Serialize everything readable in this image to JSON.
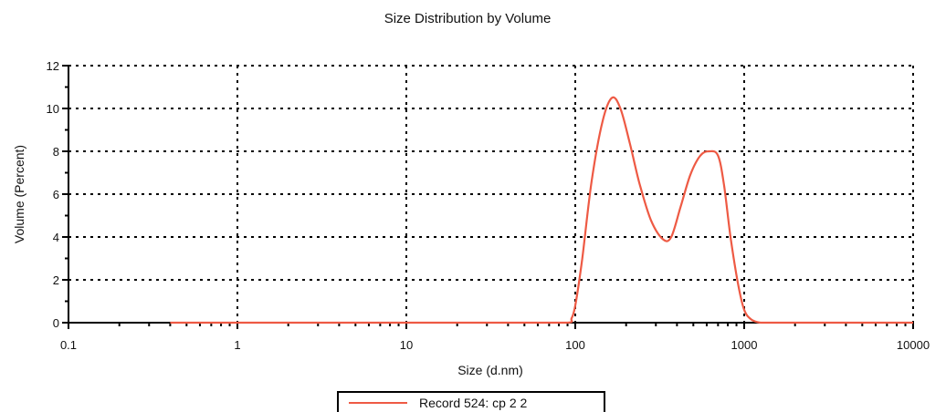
{
  "chart_data": {
    "type": "line",
    "title": "Size Distribution by Volume",
    "xlabel": "Size (d.nm)",
    "ylabel": "Volume (Percent)",
    "x_scale": "log",
    "xlim": [
      0.1,
      10000
    ],
    "ylim": [
      0,
      12
    ],
    "x_ticks": [
      0.1,
      1,
      10,
      100,
      1000,
      10000
    ],
    "x_tick_labels": [
      "0.1",
      "1",
      "10",
      "100",
      "1000",
      "10000"
    ],
    "y_ticks": [
      0,
      2,
      4,
      6,
      8,
      10,
      12
    ],
    "y_tick_labels": [
      "0",
      "2",
      "4",
      "6",
      "8",
      "10",
      "12"
    ],
    "grid": true,
    "legend_position": "bottom-center",
    "colors": {
      "series": "#ee5a44",
      "axes": "#000000"
    },
    "series": [
      {
        "name": "Record 524: cp 2 2",
        "x": [
          0.4,
          1,
          10,
          50,
          90,
          95,
          100,
          110,
          125,
          145,
          165,
          185,
          210,
          240,
          280,
          330,
          370,
          420,
          480,
          550,
          620,
          700,
          760,
          830,
          920,
          1000,
          1100,
          1250,
          1500,
          3000,
          6000,
          10000
        ],
        "values": [
          0,
          0,
          0,
          0,
          0,
          0.2,
          0.8,
          3.0,
          6.6,
          9.4,
          10.5,
          10.0,
          8.4,
          6.5,
          4.8,
          3.9,
          4.0,
          5.4,
          6.9,
          7.8,
          8.0,
          7.8,
          6.4,
          4.0,
          1.8,
          0.6,
          0.15,
          0,
          0,
          0,
          0,
          0
        ]
      }
    ]
  }
}
